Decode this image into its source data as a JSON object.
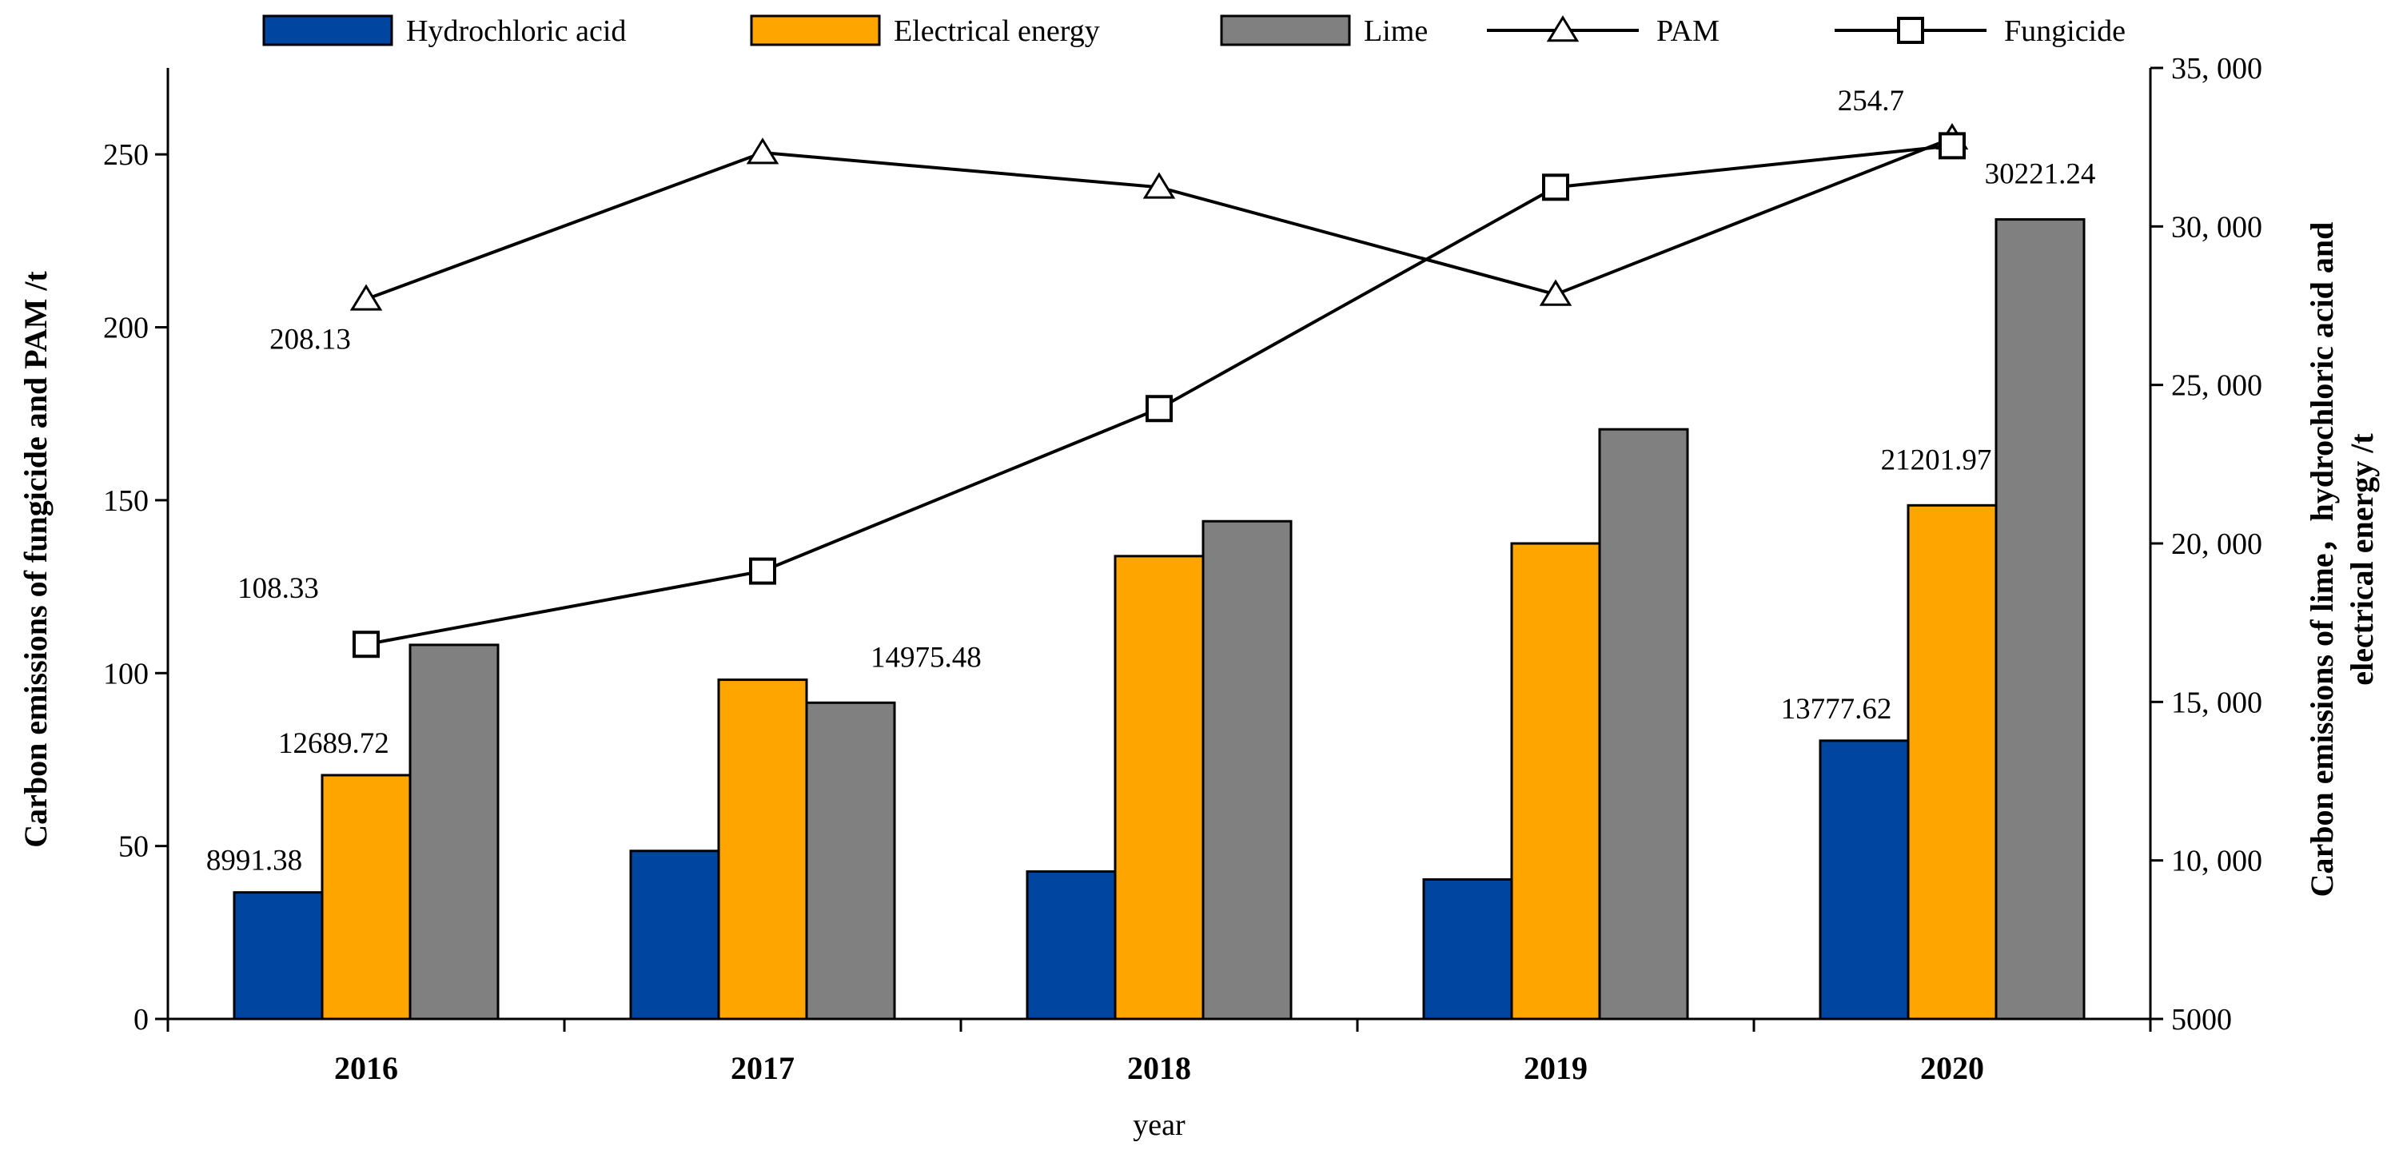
{
  "chart_data": {
    "type": "bar+line",
    "xlabel": "year",
    "categories": [
      "2016",
      "2017",
      "2018",
      "2019",
      "2020"
    ],
    "left_axis": {
      "label": "Carbon emissions of fungicide and PAM /t",
      "ylim": [
        0,
        275
      ],
      "ticks": [
        0,
        50,
        100,
        150,
        200,
        250
      ],
      "tick_labels": [
        "0",
        "50",
        "100",
        "150",
        "200",
        "250"
      ]
    },
    "right_axis": {
      "label_line1": "Carbon emissions of lime，hydrochloric acid and",
      "label_line2": "electrical energy /t",
      "ylim": [
        5000,
        35000
      ],
      "ticks": [
        5000,
        10000,
        15000,
        20000,
        25000,
        30000,
        35000
      ],
      "tick_labels": [
        "5000",
        "10, 000",
        "15, 000",
        "20, 000",
        "25, 000",
        "30, 000",
        "35, 000"
      ]
    },
    "bar_series": [
      {
        "name": "Hydrochloric acid",
        "color": "#0046a0",
        "axis": "right",
        "values": [
          8991.38,
          10300,
          9650,
          9400,
          13777.62
        ]
      },
      {
        "name": "Electrical energy",
        "color": "#ffa500",
        "axis": "right",
        "values": [
          12689.72,
          15700,
          19600,
          20000,
          21201.97
        ]
      },
      {
        "name": "Lime",
        "color": "#808080",
        "axis": "right",
        "values": [
          16800,
          14975.48,
          20700,
          23600,
          30221.24
        ]
      }
    ],
    "line_series": [
      {
        "name": "PAM",
        "marker": "triangle",
        "axis": "left",
        "values": [
          208.13,
          250.5,
          240.5,
          209.5,
          254.7
        ]
      },
      {
        "name": "Fungicide",
        "marker": "square",
        "axis": "left",
        "values": [
          108.33,
          129.5,
          176.5,
          240.5,
          252.5
        ]
      }
    ],
    "data_labels": [
      {
        "text": "8991.38",
        "series": "Hydrochloric acid",
        "category": "2016"
      },
      {
        "text": "12689.72",
        "series": "Electrical energy",
        "category": "2016"
      },
      {
        "text": "14975.48",
        "series": "Lime",
        "category": "2017"
      },
      {
        "text": "13777.62",
        "series": "Hydrochloric acid",
        "category": "2020"
      },
      {
        "text": "21201.97",
        "series": "Electrical energy",
        "category": "2020"
      },
      {
        "text": "30221.24",
        "series": "Lime",
        "category": "2020"
      },
      {
        "text": "208.13",
        "series": "PAM",
        "category": "2016"
      },
      {
        "text": "108.33",
        "series": "Fungicide",
        "category": "2016"
      },
      {
        "text": "254.7",
        "series": "PAM",
        "category": "2020"
      }
    ],
    "legend": [
      "Hydrochloric acid",
      "Electrical energy",
      "Lime",
      "PAM",
      "Fungicide"
    ],
    "legend_position": "top"
  }
}
